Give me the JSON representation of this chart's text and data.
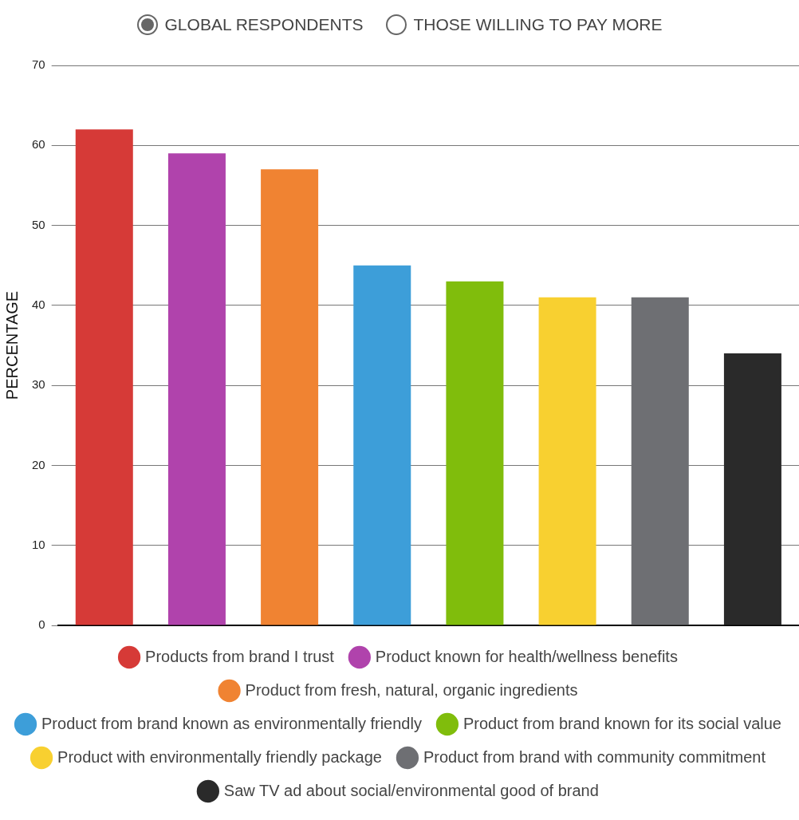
{
  "chart_data": {
    "type": "bar",
    "ylabel": "PERCENTAGE",
    "annotations": [
      "GLOBAL RESPONDENTS",
      "THOSE WILLING TO PAY MORE"
    ],
    "categories": [
      null
    ],
    "series": [
      {
        "name": "Products from brand I trust",
        "color": "#d63a37",
        "values": [
          62
        ]
      },
      {
        "name": "Product known for health/wellness benefits",
        "color": "#b043ac",
        "values": [
          59
        ]
      },
      {
        "name": "Product from fresh, natural, organic ingredients",
        "color": "#f08332",
        "values": [
          57
        ]
      },
      {
        "name": "Product from brand known as environmentally friendly",
        "color": "#3d9ed9",
        "values": [
          45
        ]
      },
      {
        "name": "Product from brand known for its social value",
        "color": "#80bd0c",
        "values": [
          43
        ]
      },
      {
        "name": "Product with environmentally friendly package",
        "color": "#f8d030",
        "values": [
          41
        ]
      },
      {
        "name": "Product from brand with community commitment",
        "color": "#6e6f73",
        "values": [
          41
        ]
      },
      {
        "name": "Saw TV ad about social/environmental good of brand",
        "color": "#2a2a2a",
        "values": [
          34
        ]
      }
    ],
    "ylim": [
      0,
      70
    ],
    "yticks": [
      0,
      10,
      20,
      30,
      40,
      50,
      60,
      70
    ],
    "grid": "y",
    "legend": "bottom",
    "tick_labels": "y"
  }
}
